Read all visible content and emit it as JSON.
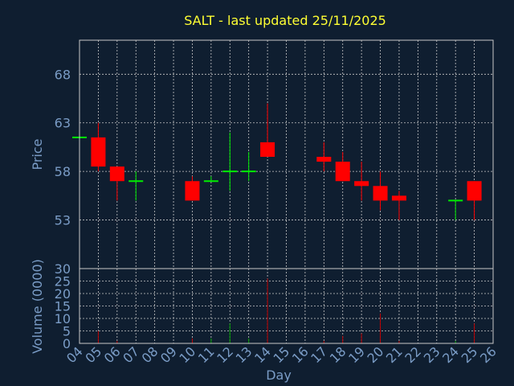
{
  "chart_data": {
    "type": "candlestick",
    "title": "SALT - last updated 25/11/2025",
    "xlabel": "Day",
    "price_panel": {
      "ylabel": "Price",
      "yticks": [
        53,
        58,
        63,
        68
      ],
      "ylim": [
        48,
        71.5
      ]
    },
    "volume_panel": {
      "ylabel": "Volume (0000)",
      "yticks": [
        0,
        5,
        10,
        15,
        20,
        25,
        30
      ],
      "ylim": [
        0,
        30
      ]
    },
    "x_ticks": [
      "04",
      "05",
      "06",
      "07",
      "08",
      "09",
      "10",
      "11",
      "12",
      "13",
      "14",
      "15",
      "16",
      "17",
      "18",
      "19",
      "20",
      "21",
      "22",
      "23",
      "24",
      "25",
      "26"
    ],
    "grid": true,
    "candles": [
      {
        "day": "04",
        "open": 61.5,
        "high": 61.5,
        "low": 61.5,
        "close": 61.5,
        "volume": 0
      },
      {
        "day": "05",
        "open": 61.5,
        "high": 63.0,
        "low": 58.0,
        "close": 58.5,
        "volume": 5
      },
      {
        "day": "06",
        "open": 58.5,
        "high": 58.5,
        "low": 55.0,
        "close": 57.0,
        "volume": 1
      },
      {
        "day": "07",
        "open": 57.0,
        "high": 58.0,
        "low": 55.0,
        "close": 57.0,
        "volume": 0
      },
      {
        "day": "10",
        "open": 57.0,
        "high": 57.5,
        "low": 55.0,
        "close": 55.0,
        "volume": 2
      },
      {
        "day": "11",
        "open": 57.0,
        "high": 57.5,
        "low": 57.0,
        "close": 57.0,
        "volume": 2
      },
      {
        "day": "12",
        "open": 58.0,
        "high": 62.0,
        "low": 56.0,
        "close": 58.0,
        "volume": 8
      },
      {
        "day": "13",
        "open": 58.0,
        "high": 60.0,
        "low": 57.0,
        "close": 58.0,
        "volume": 2
      },
      {
        "day": "14",
        "open": 61.0,
        "high": 65.0,
        "low": 59.5,
        "close": 59.5,
        "volume": 26
      },
      {
        "day": "17",
        "open": 59.5,
        "high": 61.0,
        "low": 58.0,
        "close": 59.0,
        "volume": 1
      },
      {
        "day": "18",
        "open": 59.0,
        "high": 60.0,
        "low": 57.0,
        "close": 57.0,
        "volume": 3
      },
      {
        "day": "19",
        "open": 57.0,
        "high": 59.0,
        "low": 55.0,
        "close": 56.5,
        "volume": 4
      },
      {
        "day": "20",
        "open": 56.5,
        "high": 58.0,
        "low": 54.0,
        "close": 55.0,
        "volume": 12
      },
      {
        "day": "21",
        "open": 55.5,
        "high": 56.0,
        "low": 53.0,
        "close": 55.0,
        "volume": 1
      },
      {
        "day": "24",
        "open": 55.0,
        "high": 55.0,
        "low": 53.0,
        "close": 55.0,
        "volume": 1
      },
      {
        "day": "25",
        "open": 57.0,
        "high": 57.0,
        "low": 53.0,
        "close": 55.0,
        "volume": 8
      }
    ],
    "colors": {
      "background": "#0f1e30",
      "title": "#ffff33",
      "axis_text": "#7a9cc6",
      "grid": "#c8c8c8",
      "up": "#00ee00",
      "down": "#ff0000",
      "volume_down": "#c00000",
      "volume_up": "#00a000"
    }
  }
}
